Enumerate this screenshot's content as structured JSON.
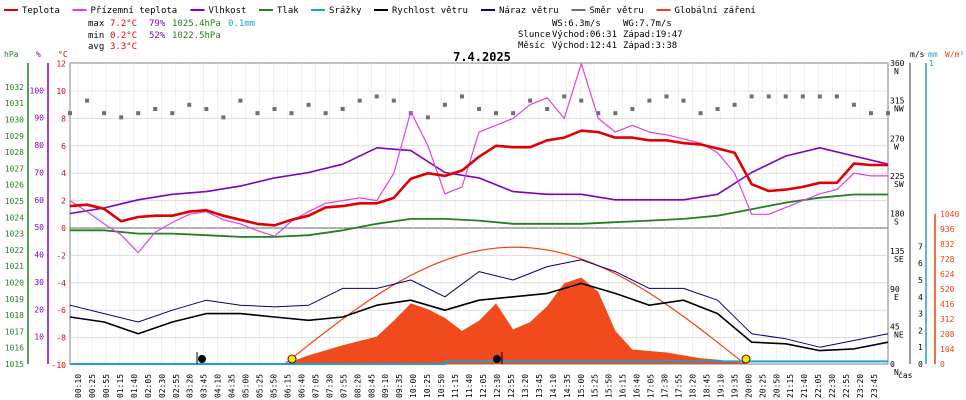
{
  "legend": [
    {
      "label": "Teplota",
      "color": "#e00000"
    },
    {
      "label": "Přízemní teplota",
      "color": "#e040e0"
    },
    {
      "label": "Vlhkost",
      "color": "#8000c0"
    },
    {
      "label": "Tlak",
      "color": "#208020"
    },
    {
      "label": "Srážky",
      "color": "#20a0d0"
    },
    {
      "label": "Rychlost větru",
      "color": "#000000"
    },
    {
      "label": "Náraz větru",
      "color": "#000080"
    },
    {
      "label": "Směr větru",
      "color": "#707070"
    },
    {
      "label": "Globální záření",
      "color": "#f04010"
    }
  ],
  "stats": {
    "max": {
      "label": "max",
      "temp": "7.2°C",
      "hum": "79%",
      "press": "1025.4hPa",
      "rain": "0.1mm"
    },
    "min": {
      "label": "min",
      "temp": "0.2°C",
      "hum": "52%",
      "press": "1022.5hPa"
    },
    "avg": {
      "label": "avg",
      "temp": "3.3°C"
    }
  },
  "title": "7.4.2025",
  "wind_info": {
    "ws": "WS:6.3m/s",
    "wg": "WG:7.7m/s"
  },
  "sun_info": {
    "label": "Slunce",
    "rise": "Východ:06:31",
    "set": "Západ:19:47"
  },
  "moon_info": {
    "label": "Měsíc",
    "rise": "Východ:12:41",
    "set": "Západ:3:38"
  },
  "axis_units": {
    "press": "hPa",
    "hum": "%",
    "temp": "°C",
    "wind": "m/s",
    "rain": "mm",
    "rad": "W/m²",
    "time": "čas"
  },
  "chart_data": {
    "type": "line",
    "title": "7.4.2025",
    "x_ticks": [
      "00:10",
      "00:25",
      "00:55",
      "01:15",
      "01:40",
      "02:05",
      "02:30",
      "02:55",
      "03:20",
      "03:45",
      "04:10",
      "04:35",
      "05:00",
      "05:25",
      "05:50",
      "06:15",
      "06:40",
      "07:05",
      "07:30",
      "07:55",
      "08:20",
      "08:45",
      "09:10",
      "09:35",
      "10:00",
      "10:25",
      "10:50",
      "11:15",
      "11:40",
      "12:05",
      "12:30",
      "12:55",
      "13:20",
      "13:45",
      "14:10",
      "14:35",
      "15:00",
      "15:25",
      "15:50",
      "16:15",
      "16:40",
      "17:05",
      "17:30",
      "17:55",
      "18:20",
      "18:45",
      "19:10",
      "19:35",
      "20:00",
      "20:25",
      "20:50",
      "21:15",
      "21:40",
      "22:05",
      "22:30",
      "22:55",
      "23:20",
      "23:45"
    ],
    "y_ticks_press": [
      "1015",
      "1016",
      "1017",
      "1018",
      "1019",
      "1020",
      "1021",
      "1022",
      "1023",
      "1024",
      "1025",
      "1026",
      "1027",
      "1028",
      "1029",
      "1030",
      "1031",
      "1032"
    ],
    "y_ticks_hum": [
      "10",
      "20",
      "30",
      "40",
      "50",
      "60",
      "70",
      "80",
      "90",
      "100"
    ],
    "y_ticks_temp": [
      "-10",
      "-8",
      "-6",
      "-4",
      "-2",
      "0",
      "2",
      "4",
      "6",
      "8",
      "10",
      "12"
    ],
    "y_ticks_dir": [
      "N",
      "NE",
      "E",
      "SE",
      "S",
      "SW",
      "W",
      "NW",
      "N"
    ],
    "y_ticks_deg": [
      "0",
      "45",
      "90",
      "135",
      "180",
      "225",
      "270",
      "315",
      "360"
    ],
    "y_ticks_wind": [
      "0",
      "1",
      "2",
      "3",
      "4",
      "5",
      "6",
      "7"
    ],
    "y_ticks_rain_top": "1",
    "y_ticks_rad": [
      "0",
      "104",
      "208",
      "312",
      "416",
      "520",
      "624",
      "728",
      "832",
      "936",
      "1040"
    ],
    "y_range_temp": [
      -10,
      13
    ],
    "x_range_hours": [
      0,
      24
    ],
    "series": [
      {
        "name": "Teplota",
        "key": "temp",
        "color": "#e00000",
        "x": [
          0,
          0.5,
          1,
          1.5,
          2,
          2.5,
          3,
          3.5,
          4,
          4.5,
          5,
          5.5,
          6,
          6.5,
          7,
          7.5,
          8,
          8.5,
          9,
          9.5,
          10,
          10.5,
          11,
          11.5,
          12,
          12.5,
          13,
          13.5,
          14,
          14.5,
          15,
          15.5,
          16,
          16.5,
          17,
          17.5,
          18,
          18.5,
          19,
          19.5,
          20,
          20.5,
          21,
          21.5,
          22,
          22.5,
          23,
          23.5,
          24
        ],
        "values": [
          1.6,
          1.7,
          1.4,
          0.5,
          0.8,
          0.9,
          0.9,
          1.2,
          1.3,
          0.9,
          0.6,
          0.3,
          0.2,
          0.6,
          0.9,
          1.5,
          1.6,
          1.8,
          1.8,
          2.2,
          3.6,
          4.0,
          3.8,
          4.2,
          5.2,
          6.0,
          5.9,
          5.9,
          6.4,
          6.6,
          7.1,
          7.0,
          6.6,
          6.6,
          6.4,
          6.4,
          6.2,
          6.1,
          5.8,
          5.5,
          3.2,
          2.7,
          2.8,
          3.0,
          3.3,
          3.3,
          4.7,
          4.6,
          4.6
        ]
      },
      {
        "name": "Přízemní teplota",
        "key": "gtemp",
        "color": "#e040e0",
        "x": [
          0,
          0.5,
          1,
          1.5,
          2,
          2.5,
          3,
          3.5,
          4,
          4.5,
          5,
          5.5,
          6,
          6.5,
          7,
          7.5,
          8,
          8.5,
          9,
          9.5,
          10,
          10.5,
          11,
          11.5,
          12,
          12.5,
          13,
          13.5,
          14,
          14.5,
          15,
          15.5,
          16,
          16.5,
          17,
          17.5,
          18,
          18.5,
          19,
          19.5,
          20,
          20.5,
          21,
          21.5,
          22,
          22.5,
          23,
          23.5,
          24
        ],
        "values": [
          2.0,
          1.2,
          0.3,
          -0.5,
          -1.8,
          -0.3,
          0.4,
          1.0,
          1.2,
          0.6,
          0.3,
          -0.2,
          -0.6,
          0.5,
          1.2,
          1.8,
          2.0,
          2.2,
          2.0,
          4.0,
          8.5,
          6.0,
          2.5,
          3.0,
          7.0,
          7.5,
          8.0,
          9.0,
          9.5,
          8.0,
          12.0,
          8.0,
          7.0,
          7.5,
          7.0,
          6.8,
          6.5,
          6.2,
          5.5,
          4.0,
          1.0,
          1.0,
          1.5,
          2.0,
          2.5,
          2.8,
          4.0,
          3.8,
          3.8
        ]
      },
      {
        "name": "Vlhkost",
        "key": "hum",
        "color": "#8000c0",
        "x": [
          0,
          1,
          2,
          3,
          4,
          5,
          6,
          7,
          8,
          9,
          10,
          11,
          12,
          13,
          14,
          15,
          16,
          17,
          18,
          19,
          20,
          21,
          22,
          23,
          24
        ],
        "values": [
          55,
          57,
          60,
          62,
          63,
          65,
          68,
          70,
          73,
          79,
          78,
          70,
          68,
          63,
          62,
          62,
          60,
          60,
          60,
          62,
          70,
          76,
          79,
          76,
          73
        ]
      },
      {
        "name": "Tlak",
        "key": "press",
        "color": "#208020",
        "x": [
          0,
          1,
          2,
          3,
          4,
          5,
          6,
          7,
          8,
          9,
          10,
          11,
          12,
          13,
          14,
          15,
          16,
          17,
          18,
          19,
          20,
          21,
          22,
          23,
          24
        ],
        "values": [
          1023.2,
          1023.2,
          1023.0,
          1023.0,
          1022.9,
          1022.8,
          1022.8,
          1022.9,
          1023.2,
          1023.6,
          1023.9,
          1023.9,
          1023.8,
          1023.6,
          1023.6,
          1023.6,
          1023.7,
          1023.8,
          1023.9,
          1024.1,
          1024.5,
          1024.9,
          1025.2,
          1025.4,
          1025.4
        ]
      },
      {
        "name": "Rychlost větru",
        "key": "wspeed",
        "color": "#000000",
        "x": [
          0,
          1,
          2,
          3,
          4,
          5,
          6,
          7,
          8,
          9,
          10,
          11,
          12,
          13,
          14,
          15,
          16,
          17,
          18,
          19,
          20,
          21,
          22,
          23,
          24
        ],
        "values": [
          2.8,
          2.5,
          1.8,
          2.5,
          3.0,
          3.0,
          2.8,
          2.6,
          2.8,
          3.5,
          3.8,
          3.2,
          3.8,
          4.0,
          4.2,
          4.8,
          4.2,
          3.5,
          3.8,
          3.0,
          1.3,
          1.2,
          0.8,
          0.9,
          1.3
        ]
      },
      {
        "name": "Náraz větru",
        "key": "wgust",
        "color": "#000080",
        "x": [
          0,
          1,
          2,
          3,
          4,
          5,
          6,
          7,
          8,
          9,
          10,
          11,
          12,
          13,
          14,
          15,
          16,
          17,
          18,
          19,
          20,
          21,
          22,
          23,
          24
        ],
        "values": [
          3.5,
          3.0,
          2.5,
          3.2,
          3.8,
          3.5,
          3.4,
          3.5,
          4.5,
          4.5,
          5.0,
          4.0,
          5.5,
          5.0,
          5.8,
          6.2,
          5.5,
          4.5,
          4.5,
          3.8,
          1.8,
          1.5,
          1.0,
          1.4,
          1.8
        ]
      },
      {
        "name": "Globální záření",
        "key": "rad",
        "color": "#f04010",
        "x": [
          0,
          6.3,
          7,
          8,
          9,
          9.5,
          10,
          10.5,
          11,
          11.5,
          12,
          12.5,
          13,
          13.5,
          14,
          14.5,
          15,
          15.5,
          16,
          16.5,
          17,
          17.5,
          18,
          18.5,
          19,
          19.5,
          20,
          24
        ],
        "values": [
          0,
          0,
          60,
          130,
          190,
          300,
          420,
          380,
          320,
          230,
          300,
          420,
          240,
          290,
          400,
          560,
          600,
          500,
          230,
          100,
          90,
          80,
          60,
          40,
          30,
          15,
          0,
          0
        ]
      },
      {
        "name": "Srážky",
        "key": "rain",
        "color": "#20a0d0",
        "x": [
          0,
          11,
          11.01,
          24
        ],
        "values": [
          0,
          0,
          0.1,
          0.1
        ]
      },
      {
        "name": "Směr větru",
        "key": "wdir",
        "color": "#707070",
        "x": [
          0,
          0.5,
          1,
          1.5,
          2,
          2.5,
          3,
          3.5,
          4,
          4.5,
          5,
          5.5,
          6,
          6.5,
          7,
          7.5,
          8,
          8.5,
          9,
          9.5,
          10,
          10.5,
          11,
          11.5,
          12,
          12.5,
          13,
          13.5,
          14,
          14.5,
          15,
          15.5,
          16,
          16.5,
          17,
          17.5,
          18,
          18.5,
          19,
          19.5,
          20,
          20.5,
          21,
          21.5,
          22,
          22.5,
          23,
          23.5,
          24
        ],
        "values": [
          300,
          315,
          300,
          295,
          300,
          305,
          300,
          310,
          305,
          295,
          315,
          300,
          305,
          300,
          310,
          300,
          305,
          315,
          320,
          315,
          300,
          295,
          310,
          320,
          305,
          300,
          300,
          315,
          305,
          320,
          315,
          300,
          300,
          305,
          315,
          320,
          315,
          300,
          305,
          310,
          320,
          320,
          320,
          320,
          320,
          320,
          310,
          300,
          300
        ]
      }
    ]
  }
}
